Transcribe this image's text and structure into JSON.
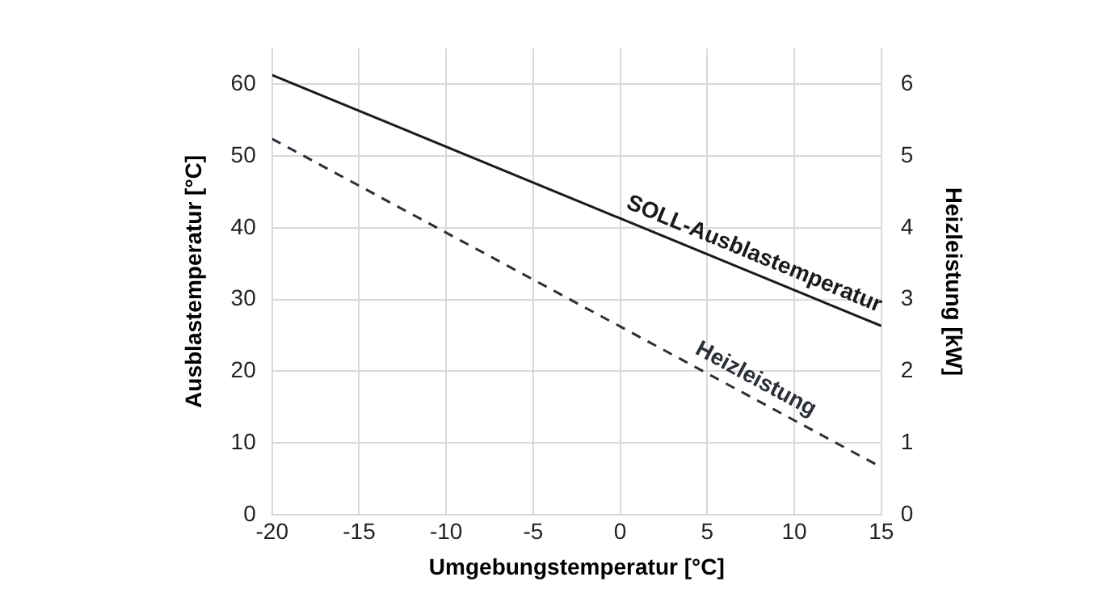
{
  "chart_data": {
    "type": "line",
    "xlabel": "Umgebungstemperatur [°C]",
    "ylabel": "Ausblastemperatur [°C]",
    "y2label": "Heizleistung [kW]",
    "x": [
      -20,
      15
    ],
    "series": [
      {
        "name": "SOLL-Ausblastemperatur",
        "color": "#1a1a1a",
        "values": [
          61.3,
          26.3
        ],
        "line_style": "solid"
      },
      {
        "name": "Heizleistung",
        "color": "#2b2f36",
        "values": [
          5.24,
          0.66
        ],
        "axis": "y2",
        "line_style": "dashed"
      }
    ],
    "xlim": [
      -20,
      15
    ],
    "xticks": [
      -20,
      -15,
      -10,
      -5,
      0,
      5,
      10,
      15
    ],
    "ylim": [
      0,
      65
    ],
    "yticks": [
      0,
      10,
      20,
      30,
      40,
      50,
      60
    ],
    "y2lim": [
      0,
      6.5
    ],
    "y2ticks": [
      0,
      1,
      2,
      3,
      4,
      5,
      6
    ],
    "grid": true,
    "legend": false,
    "marker": "none"
  }
}
